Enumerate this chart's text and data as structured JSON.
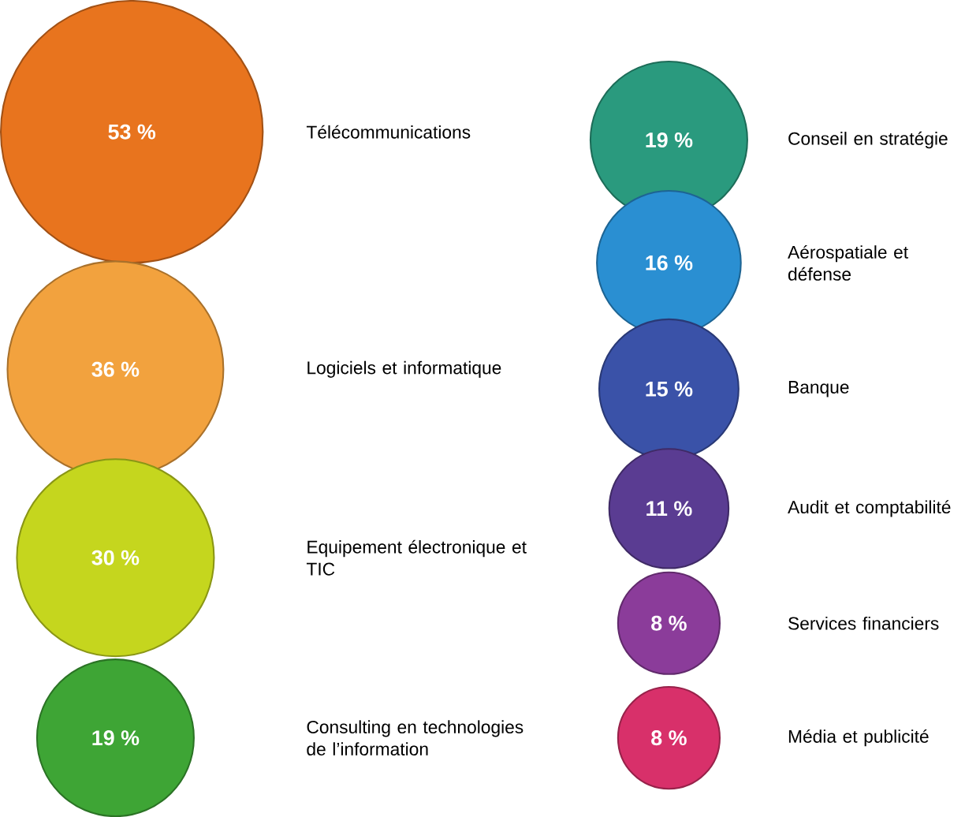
{
  "chart_data": {
    "type": "other",
    "categories": [
      "Télécommunications",
      "Logiciels et informatique",
      "Equipement électronique et TIC",
      "Consulting en technologies de l’information",
      "Conseil en stratégie",
      "Aérospatiale et défense",
      "Banque",
      "Audit et comptabilité",
      "Services financiers",
      "Média et publicité"
    ],
    "values": [
      53,
      36,
      30,
      19,
      19,
      16,
      15,
      11,
      8,
      8
    ],
    "value_labels": [
      "53 %",
      "36 %",
      "30 %",
      "19 %",
      "19 %",
      "16 %",
      "15 %",
      "11 %",
      "8 %",
      "8 %"
    ],
    "colors": [
      "#e8741e",
      "#f2a23e",
      "#c5d61e",
      "#3ea535",
      "#2a9a7e",
      "#2a8fd2",
      "#3a52a8",
      "#5a3c92",
      "#8b3c9a",
      "#d8306a"
    ]
  }
}
